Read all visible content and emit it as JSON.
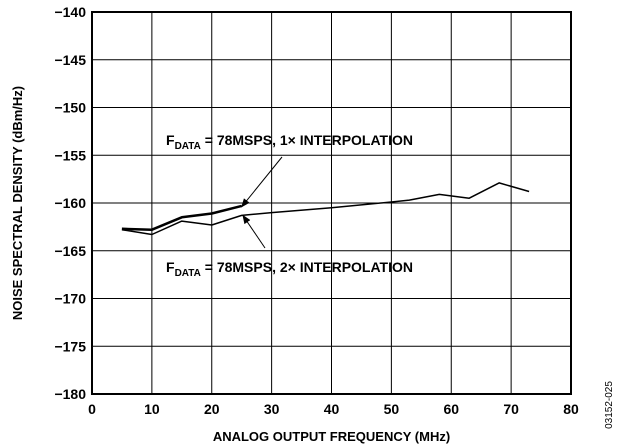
{
  "chart_data": {
    "type": "line",
    "title": "",
    "xlabel": "ANALOG OUTPUT FREQUENCY (MHz)",
    "ylabel": "NOISE SPECTRAL DENSITY (dBm/Hz)",
    "xlim": [
      0,
      80
    ],
    "ylim": [
      -180,
      -140
    ],
    "x_ticks": [
      0,
      10,
      20,
      30,
      40,
      50,
      60,
      70,
      80
    ],
    "x_tick_labels": [
      "0",
      "10",
      "20",
      "30",
      "40",
      "50",
      "60",
      "70",
      "80"
    ],
    "y_ticks": [
      -140,
      -145,
      -150,
      -155,
      -160,
      -165,
      -170,
      -175,
      -180
    ],
    "y_tick_labels": [
      "−140",
      "−145",
      "−150",
      "−155",
      "−160",
      "−165",
      "−170",
      "−175",
      "−180"
    ],
    "grid": true,
    "series": [
      {
        "x": [
          5,
          10,
          15,
          20,
          25
        ],
        "y": [
          -162.7,
          -162.8,
          -161.5,
          -161.1,
          -160.3
        ],
        "stroke_width": 2.5
      },
      {
        "x": [
          5,
          10,
          15,
          20,
          25,
          30,
          40,
          50,
          53,
          58,
          63,
          68,
          73
        ],
        "y": [
          -162.8,
          -163.3,
          -161.9,
          -162.3,
          -161.3,
          -161.0,
          -160.5,
          -159.9,
          -159.7,
          -159.1,
          -159.5,
          -157.9,
          -158.8
        ],
        "stroke_width": 1.5
      }
    ],
    "annotations": [
      {
        "prefix": "F",
        "sub": "DATA",
        "rest": " = 78MSPS, 1× INTERPOLATION",
        "series_index": 0,
        "arrow_target": {
          "x": 25,
          "y": -160.4
        }
      },
      {
        "prefix": "F",
        "sub": "DATA",
        "rest": " = 78MSPS, 2× INTERPOLATION",
        "series_index": 1,
        "arrow_target": {
          "x": 25.2,
          "y": -161.3
        }
      }
    ],
    "figure_id": "03152-025"
  }
}
